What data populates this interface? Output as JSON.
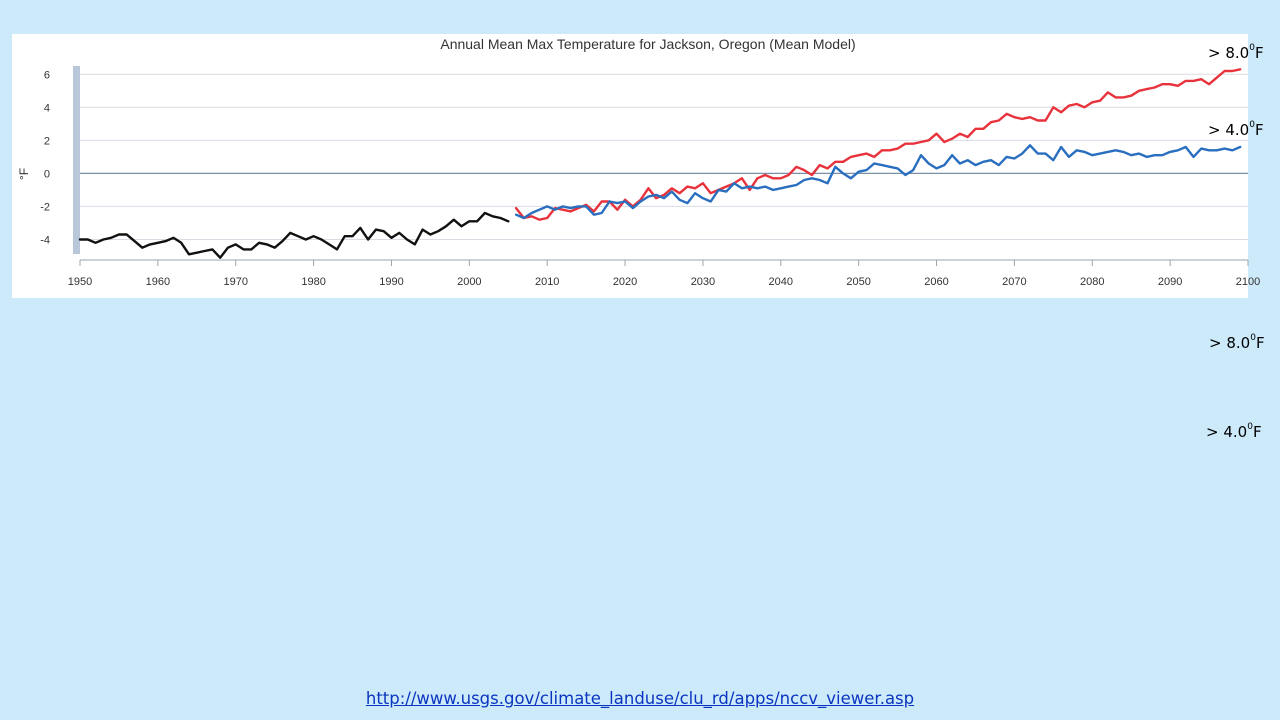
{
  "slide": {
    "annotations": [
      {
        "prefix": "> 8.0",
        "sup": "0",
        "unit": "F"
      },
      {
        "prefix": "> 4.0",
        "sup": "0",
        "unit": "F"
      },
      {
        "prefix": "> 8.0",
        "sup": "0",
        "unit": "F"
      },
      {
        "prefix": "> 4.0",
        "sup": "0",
        "unit": "F"
      }
    ],
    "source_url": "http://www.usgs.gov/climate_landuse/clu_rd/apps/nccv_viewer.asp"
  },
  "colors": {
    "background": "#cceafa",
    "historical": "#111111",
    "high_emissions": "#e8323c",
    "low_emissions": "#2a6fbf",
    "link": "#0b35c0"
  },
  "chart_data": {
    "type": "line",
    "title": "Annual Mean Max Temperature for Jackson, Oregon (Mean Model)",
    "ylabel": "°F",
    "xlabel": "",
    "xlim": [
      1950,
      2100
    ],
    "ylim": [
      -5,
      6.5
    ],
    "xticks": [
      "1950",
      "1960",
      "1970",
      "1980",
      "1990",
      "2000",
      "2010",
      "2020",
      "2030",
      "2040",
      "2050",
      "2060",
      "2070",
      "2080",
      "2090",
      "2100"
    ],
    "yticks": [
      "6",
      "4",
      "2",
      "0",
      "-2",
      "-4"
    ],
    "grid": true,
    "series": [
      {
        "key": "historical",
        "color": "#111111",
        "x": [
          1950,
          1951,
          1952,
          1953,
          1954,
          1955,
          1956,
          1957,
          1958,
          1959,
          1960,
          1961,
          1962,
          1963,
          1964,
          1965,
          1966,
          1967,
          1968,
          1969,
          1970,
          1971,
          1972,
          1973,
          1974,
          1975,
          1976,
          1977,
          1978,
          1979,
          1980,
          1981,
          1982,
          1983,
          1984,
          1985,
          1986,
          1987,
          1988,
          1989,
          1990,
          1991,
          1992,
          1993,
          1994,
          1995,
          1996,
          1997,
          1998,
          1999,
          2000,
          2001,
          2002,
          2003,
          2004,
          2005
        ],
        "values": [
          -4.0,
          -4.0,
          -4.2,
          -4.0,
          -3.9,
          -3.7,
          -3.7,
          -4.1,
          -4.5,
          -4.3,
          -4.2,
          -4.1,
          -3.9,
          -4.2,
          -4.9,
          -4.8,
          -4.7,
          -4.6,
          -5.1,
          -4.5,
          -4.3,
          -4.6,
          -4.6,
          -4.2,
          -4.3,
          -4.5,
          -4.1,
          -3.6,
          -3.8,
          -4.0,
          -3.8,
          -4.0,
          -4.3,
          -4.6,
          -3.8,
          -3.8,
          -3.3,
          -4.0,
          -3.4,
          -3.5,
          -3.9,
          -3.6,
          -4.0,
          -4.3,
          -3.4,
          -3.7,
          -3.5,
          -3.2,
          -2.8,
          -3.2,
          -2.9,
          -2.9,
          -2.4,
          -2.6,
          -2.7,
          -2.9
        ]
      },
      {
        "key": "high_emissions",
        "color": "#e8323c",
        "x": [
          2006,
          2007,
          2008,
          2009,
          2010,
          2011,
          2012,
          2013,
          2014,
          2015,
          2016,
          2017,
          2018,
          2019,
          2020,
          2021,
          2022,
          2023,
          2024,
          2025,
          2026,
          2027,
          2028,
          2029,
          2030,
          2031,
          2032,
          2033,
          2034,
          2035,
          2036,
          2037,
          2038,
          2039,
          2040,
          2041,
          2042,
          2043,
          2044,
          2045,
          2046,
          2047,
          2048,
          2049,
          2050,
          2051,
          2052,
          2053,
          2054,
          2055,
          2056,
          2057,
          2058,
          2059,
          2060,
          2061,
          2062,
          2063,
          2064,
          2065,
          2066,
          2067,
          2068,
          2069,
          2070,
          2071,
          2072,
          2073,
          2074,
          2075,
          2076,
          2077,
          2078,
          2079,
          2080,
          2081,
          2082,
          2083,
          2084,
          2085,
          2086,
          2087,
          2088,
          2089,
          2090,
          2091,
          2092,
          2093,
          2094,
          2095,
          2096,
          2097,
          2098,
          2099
        ],
        "values": [
          -2.1,
          -2.7,
          -2.6,
          -2.8,
          -2.7,
          -2.1,
          -2.2,
          -2.3,
          -2.1,
          -1.9,
          -2.3,
          -1.7,
          -1.7,
          -2.2,
          -1.6,
          -2.0,
          -1.6,
          -0.9,
          -1.5,
          -1.3,
          -0.9,
          -1.2,
          -0.8,
          -0.9,
          -0.6,
          -1.2,
          -1.0,
          -0.8,
          -0.6,
          -0.3,
          -1.0,
          -0.3,
          -0.1,
          -0.3,
          -0.3,
          -0.1,
          0.4,
          0.2,
          -0.1,
          0.5,
          0.3,
          0.7,
          0.7,
          1.0,
          1.1,
          1.2,
          1.0,
          1.4,
          1.4,
          1.5,
          1.8,
          1.8,
          1.9,
          2.0,
          2.4,
          1.9,
          2.1,
          2.4,
          2.2,
          2.7,
          2.7,
          3.1,
          3.2,
          3.6,
          3.4,
          3.3,
          3.4,
          3.2,
          3.2,
          4.0,
          3.7,
          4.1,
          4.2,
          4.0,
          4.3,
          4.4,
          4.9,
          4.6,
          4.6,
          4.7,
          5.0,
          5.1,
          5.2,
          5.4,
          5.4,
          5.3,
          5.6,
          5.6,
          5.7,
          5.4,
          5.8,
          6.2,
          6.2,
          6.3
        ]
      },
      {
        "key": "low_emissions",
        "color": "#2a6fbf",
        "x": [
          2006,
          2007,
          2008,
          2009,
          2010,
          2011,
          2012,
          2013,
          2014,
          2015,
          2016,
          2017,
          2018,
          2019,
          2020,
          2021,
          2022,
          2023,
          2024,
          2025,
          2026,
          2027,
          2028,
          2029,
          2030,
          2031,
          2032,
          2033,
          2034,
          2035,
          2036,
          2037,
          2038,
          2039,
          2040,
          2041,
          2042,
          2043,
          2044,
          2045,
          2046,
          2047,
          2048,
          2049,
          2050,
          2051,
          2052,
          2053,
          2054,
          2055,
          2056,
          2057,
          2058,
          2059,
          2060,
          2061,
          2062,
          2063,
          2064,
          2065,
          2066,
          2067,
          2068,
          2069,
          2070,
          2071,
          2072,
          2073,
          2074,
          2075,
          2076,
          2077,
          2078,
          2079,
          2080,
          2081,
          2082,
          2083,
          2084,
          2085,
          2086,
          2087,
          2088,
          2089,
          2090,
          2091,
          2092,
          2093,
          2094,
          2095,
          2096,
          2097,
          2098,
          2099
        ],
        "values": [
          -2.5,
          -2.7,
          -2.4,
          -2.2,
          -2.0,
          -2.2,
          -2.0,
          -2.1,
          -2.0,
          -2.0,
          -2.5,
          -2.4,
          -1.7,
          -1.8,
          -1.7,
          -2.1,
          -1.7,
          -1.4,
          -1.3,
          -1.5,
          -1.1,
          -1.6,
          -1.8,
          -1.2,
          -1.5,
          -1.7,
          -1.0,
          -1.1,
          -0.6,
          -0.9,
          -0.8,
          -0.9,
          -0.8,
          -1.0,
          -0.9,
          -0.8,
          -0.7,
          -0.4,
          -0.3,
          -0.4,
          -0.6,
          0.4,
          0.0,
          -0.3,
          0.1,
          0.2,
          0.6,
          0.5,
          0.4,
          0.3,
          -0.1,
          0.2,
          1.1,
          0.6,
          0.3,
          0.5,
          1.1,
          0.6,
          0.8,
          0.5,
          0.7,
          0.8,
          0.5,
          1.0,
          0.9,
          1.2,
          1.7,
          1.2,
          1.2,
          0.8,
          1.6,
          1.0,
          1.4,
          1.3,
          1.1,
          1.2,
          1.3,
          1.4,
          1.3,
          1.1,
          1.2,
          1.0,
          1.1,
          1.1,
          1.3,
          1.4,
          1.6,
          1.0,
          1.5,
          1.4,
          1.4,
          1.5,
          1.4,
          1.6
        ]
      }
    ]
  }
}
